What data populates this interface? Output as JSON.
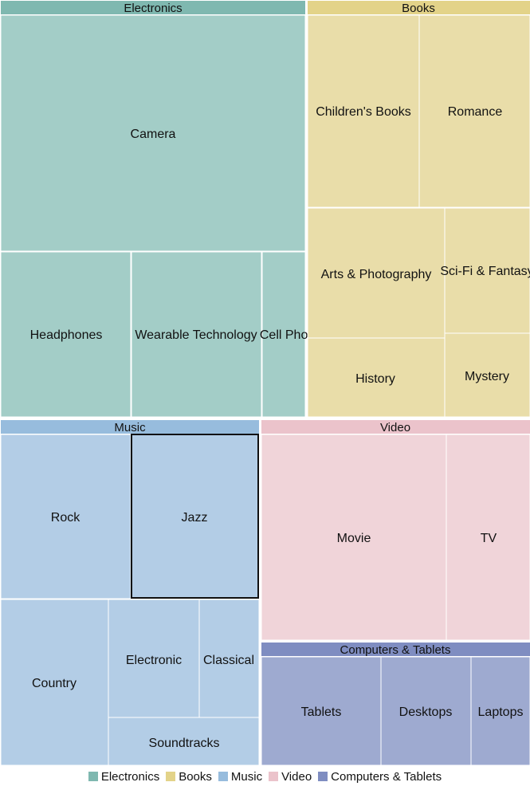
{
  "chart_data": {
    "type": "treemap",
    "groups": [
      {
        "name": "Electronics",
        "color": "#7fb8b0",
        "leaf_color": "#a3cdc7",
        "children": [
          {
            "name": "Camera",
            "value": 33
          },
          {
            "name": "Headphones",
            "value": 8
          },
          {
            "name": "Wearable Technology",
            "value": 8
          },
          {
            "name": "Cell Phones",
            "value": 3
          }
        ]
      },
      {
        "name": "Books",
        "color": "#e3d389",
        "leaf_color": "#e9dda9",
        "children": [
          {
            "name": "Children's Books",
            "value": 8
          },
          {
            "name": "Romance",
            "value": 7
          },
          {
            "name": "Arts & Photography",
            "value": 6
          },
          {
            "name": "Sci-Fi & Fantasy",
            "value": 4
          },
          {
            "name": "History",
            "value": 3
          },
          {
            "name": "Mystery",
            "value": 2
          }
        ]
      },
      {
        "name": "Music",
        "color": "#97bcdd",
        "leaf_color": "#b3cde6",
        "children": [
          {
            "name": "Rock",
            "value": 8
          },
          {
            "name": "Jazz",
            "value": 8
          },
          {
            "name": "Country",
            "value": 5
          },
          {
            "name": "Electronic",
            "value": 3
          },
          {
            "name": "Classical",
            "value": 2
          },
          {
            "name": "Soundtracks",
            "value": 3
          }
        ]
      },
      {
        "name": "Video",
        "color": "#ebc3cb",
        "leaf_color": "#f0d4d9",
        "children": [
          {
            "name": "Movie",
            "value": 11
          },
          {
            "name": "TV",
            "value": 5
          }
        ]
      },
      {
        "name": "Computers & Tablets",
        "color": "#7f8dc1",
        "leaf_color": "#9eaad0",
        "children": [
          {
            "name": "Tablets",
            "value": 3
          },
          {
            "name": "Desktops",
            "value": 2
          },
          {
            "name": "Laptops",
            "value": 1.5
          }
        ]
      }
    ],
    "highlighted": "Jazz",
    "legend": [
      "Electronics",
      "Books",
      "Music",
      "Video",
      "Computers & Tablets"
    ],
    "legend_position": "bottom"
  }
}
